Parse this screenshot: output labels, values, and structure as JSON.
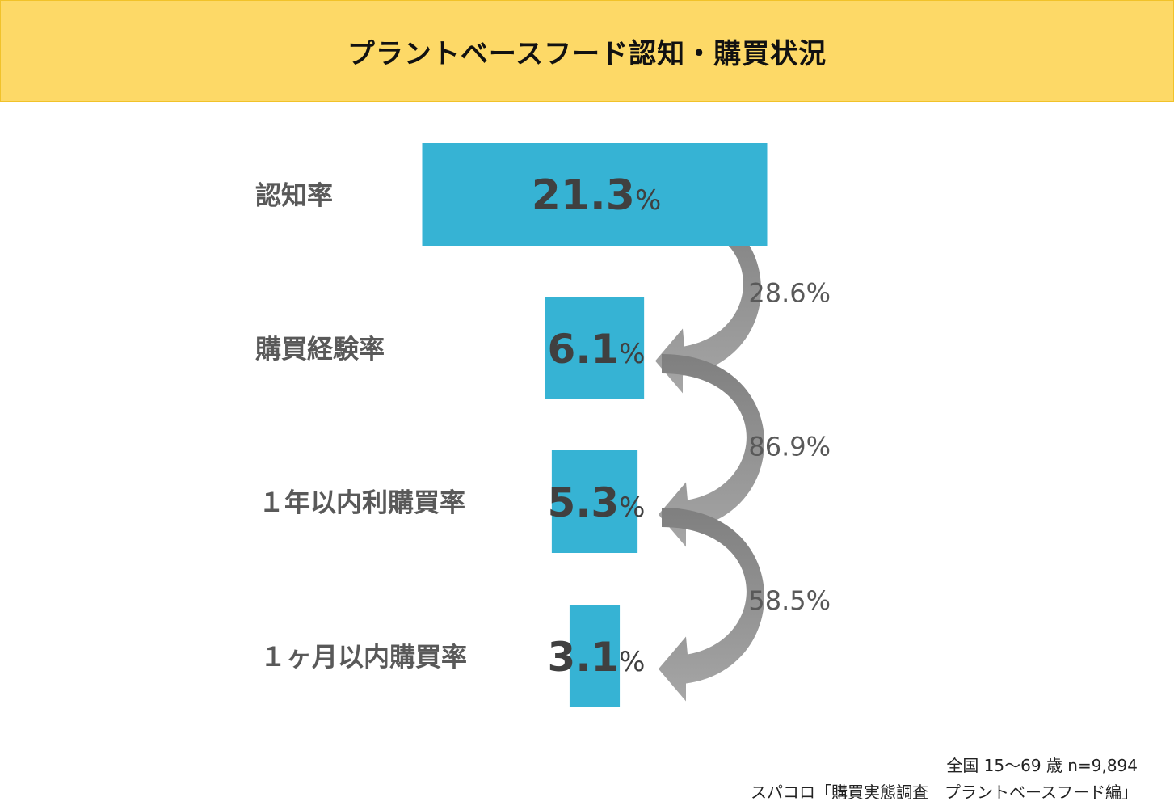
{
  "header": {
    "title": "プラントベースフード認知・購買状況"
  },
  "chart_data": {
    "type": "bar",
    "categories": [
      "認知率",
      "購買経験率",
      "１年以内利購買率",
      "１ヶ月以内購買率"
    ],
    "values": [
      21.3,
      6.1,
      5.3,
      3.1
    ],
    "value_labels": [
      "21.3",
      "6.1",
      "5.3",
      "3.1"
    ],
    "value_unit": "%",
    "conversion_rates": [
      "28.6%",
      "86.9%",
      "58.5%"
    ],
    "bar_color": "#36b3d4",
    "arrow_color": "#a6a6a6"
  },
  "footnotes": {
    "line1": "全国 15～69 歳 n=9,894",
    "line2": "スパコロ「購買実態調査　プラントベースフード編」"
  }
}
